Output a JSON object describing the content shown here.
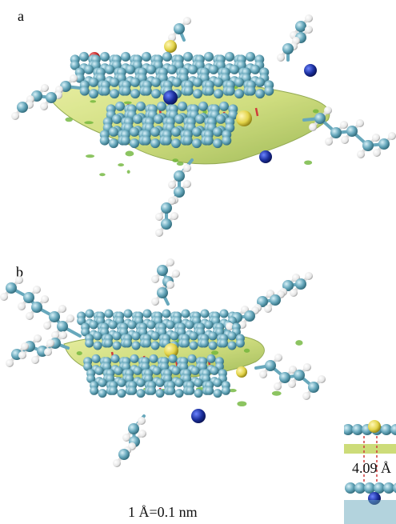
{
  "panels": [
    {
      "label": "a",
      "molecule": "stacked-aromatic-dimer",
      "interaction_surface": "green-yellow-isosurface"
    },
    {
      "label": "b",
      "molecule": "stacked-aromatic-dimer",
      "interaction_surface": "green-yellow-isosurface"
    }
  ],
  "inset": {
    "distance_label": "4.09 Å"
  },
  "scale_note": "1 Å=0.1 nm",
  "colors": {
    "carbon": "#67a8bc",
    "hydrogen": "#f2f2f2",
    "sulfur": "#e3d44a",
    "nitrogen": "#1a2e9c",
    "oxygen": "#c92b2b",
    "isosurface": "#c8d86a",
    "isosurface_dark": "#9db34a",
    "bond_red": "#d03a3a"
  }
}
